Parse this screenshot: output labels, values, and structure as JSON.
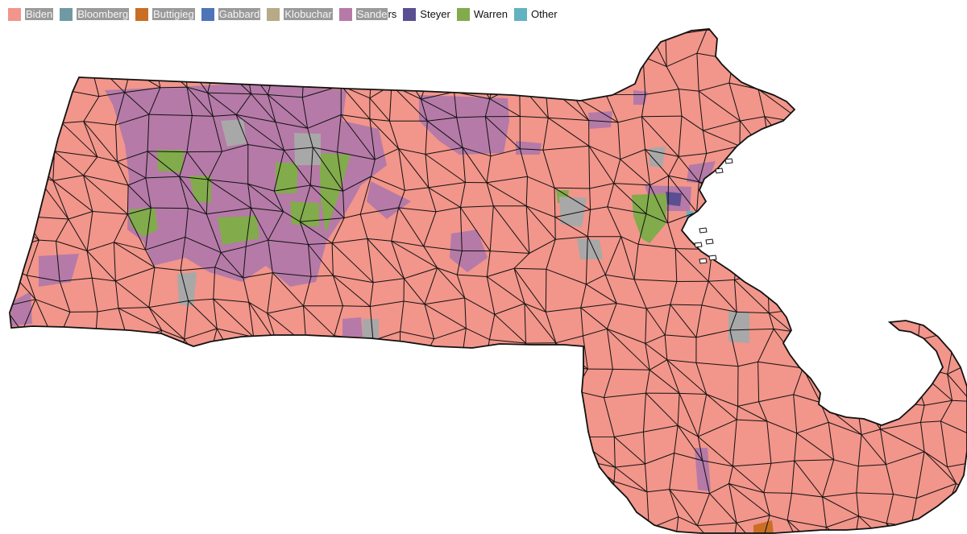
{
  "legend": {
    "items": [
      {
        "label": "Biden",
        "label_highlight": "Biden",
        "label_rest": "",
        "color": "#f2958a"
      },
      {
        "label": "Bloomberg",
        "label_highlight": "Bloomberg",
        "label_rest": "",
        "color": "#6f9aa3"
      },
      {
        "label": "Buttigieg",
        "label_highlight": "Buttigieg",
        "label_rest": "",
        "color": "#c86f25"
      },
      {
        "label": "Gabbard",
        "label_highlight": "Gabbard",
        "label_rest": "",
        "color": "#4d74b8"
      },
      {
        "label": "Klobuchar",
        "label_highlight": "Klobuchar",
        "label_rest": "",
        "color": "#b6ab86"
      },
      {
        "label": "Sanders",
        "label_highlight": "Sande",
        "label_rest": "rs",
        "color": "#b57aa8"
      },
      {
        "label": "Steyer",
        "label_highlight": "",
        "label_rest": "Steyer",
        "color": "#5a4f91"
      },
      {
        "label": "Warren",
        "label_highlight": "",
        "label_rest": "Warren",
        "color": "#82ab4c"
      },
      {
        "label": "Other",
        "label_highlight": "",
        "label_rest": "Other",
        "color": "#63b2c2"
      }
    ]
  },
  "map": {
    "no_data_color": "#a8a8a8",
    "border_color": "#111111",
    "regions_by_winner": {
      "Sanders": "Western and central Massachusetts hill towns, Pioneer Valley, parts of Worcester County, Somerville/Cambridge area, one Martha's Vineyard town",
      "Warren": "Several Pioneer Valley towns and Cambridge/Somerville area",
      "Biden": "Most of eastern Massachusetts, Cape Cod, South Coast, Berkshire County",
      "Buttigieg": "Nantucket-area sliver",
      "Other": "One Boston-area tract"
    }
  }
}
